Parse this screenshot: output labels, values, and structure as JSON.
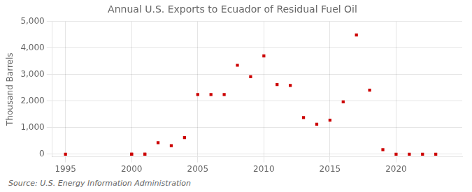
{
  "chart_data": {
    "type": "scatter",
    "title": "Annual U.S. Exports to Ecuador of Residual Fuel Oil",
    "y_label": "Thousand Barrels",
    "source": "Source: U.S. Energy Information Administration",
    "series": [
      {
        "x": [
          2000,
          2001,
          2002,
          2003,
          2004,
          2005,
          2006,
          2007,
          2008,
          2009,
          2010,
          2011,
          2012,
          2013,
          2014,
          2015,
          2016,
          2017,
          2018,
          2019,
          2020,
          2021,
          2022,
          2023
        ],
        "values": [
          0,
          0,
          430,
          320,
          620,
          2250,
          2250,
          2250,
          3350,
          2920,
          3700,
          2620,
          2590,
          1380,
          1130,
          1280,
          1970,
          4490,
          2410,
          170,
          0,
          0,
          0,
          0
        ],
        "color": "#cc0000",
        "marker": "square"
      },
      {
        "x": [
          1995,
          2000,
          2001
        ],
        "values": [
          0,
          0,
          0
        ],
        "color": "#cc0000",
        "marker": "square"
      }
    ],
    "xlim": [
      1994.0,
      2025.0
    ],
    "ylim": [
      -100,
      5000
    ],
    "xticks": [
      1995,
      2000,
      2005,
      2010,
      2015,
      2020
    ],
    "yticks": [
      0,
      {
        "value": 1000,
        "label": "1,000"
      },
      {
        "value": 2000,
        "label": "2,000"
      },
      {
        "value": 3000,
        "label": "3,000"
      },
      {
        "value": 4000,
        "label": "4,000"
      },
      {
        "value": 5000,
        "label": "5,000"
      }
    ],
    "grid": true
  }
}
